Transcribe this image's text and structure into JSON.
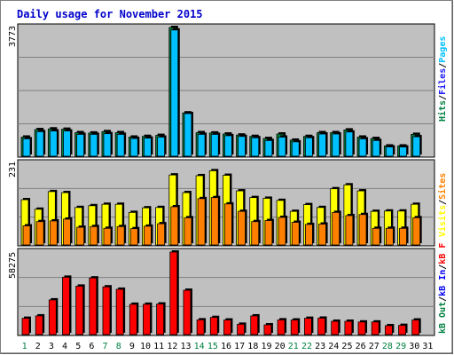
{
  "title": "Daily usage for November 2015",
  "colors": {
    "background": "#c0c0c0",
    "grid": "#808080",
    "pages": "#00c0ff",
    "files": "#1a1aff",
    "hits": "#008040",
    "sites": "#ff8000",
    "visits": "#ffff00",
    "kbytes": "#ff0000",
    "kb_in": "#0000ff",
    "kb_out": "#008040",
    "weekday": "#000000",
    "weekend": "#008040",
    "title": "#0000cc"
  },
  "chart_data": [
    {
      "type": "bar",
      "panel": "hits",
      "ymax_label": "3773",
      "ylim": [
        0,
        3773
      ],
      "categories": [
        "1",
        "2",
        "3",
        "4",
        "5",
        "6",
        "7",
        "8",
        "9",
        "10",
        "11",
        "12",
        "13",
        "14",
        "15",
        "16",
        "17",
        "18",
        "19",
        "20",
        "21",
        "22",
        "23",
        "24",
        "25",
        "26",
        "27",
        "28",
        "29",
        "30",
        "31"
      ],
      "series": [
        {
          "name": "Hits",
          "values": [
            560,
            780,
            800,
            790,
            690,
            680,
            720,
            690,
            560,
            580,
            610,
            3773,
            1270,
            690,
            680,
            650,
            620,
            580,
            520,
            650,
            470,
            580,
            690,
            690,
            770,
            560,
            520,
            300,
            300,
            640,
            0
          ]
        },
        {
          "name": "Files",
          "values": [
            510,
            720,
            740,
            740,
            640,
            640,
            660,
            640,
            520,
            530,
            560,
            3700,
            1250,
            640,
            640,
            600,
            580,
            540,
            460,
            560,
            420,
            540,
            650,
            650,
            710,
            510,
            460,
            270,
            270,
            570,
            0
          ]
        },
        {
          "name": "Pages",
          "values": [
            0,
            0,
            0,
            0,
            0,
            0,
            0,
            0,
            0,
            0,
            0,
            0,
            0,
            0,
            0,
            0,
            0,
            0,
            0,
            0,
            0,
            0,
            0,
            0,
            0,
            0,
            0,
            0,
            0,
            0,
            0
          ]
        }
      ]
    },
    {
      "type": "bar",
      "panel": "visits",
      "ymax_label": "231",
      "ylim": [
        0,
        231
      ],
      "categories": [
        "1",
        "2",
        "3",
        "4",
        "5",
        "6",
        "7",
        "8",
        "9",
        "10",
        "11",
        "12",
        "13",
        "14",
        "15",
        "16",
        "17",
        "18",
        "19",
        "20",
        "21",
        "22",
        "23",
        "24",
        "25",
        "26",
        "27",
        "28",
        "29",
        "30",
        "31"
      ],
      "series": [
        {
          "name": "Visits",
          "values": [
            128,
            101,
            151,
            148,
            106,
            111,
            115,
            115,
            92,
            105,
            106,
            198,
            148,
            196,
            210,
            197,
            153,
            134,
            132,
            126,
            95,
            114,
            106,
            159,
            170,
            153,
            95,
            96,
            96,
            115,
            0
          ]
        },
        {
          "name": "Sites",
          "values": [
            54,
            66,
            68,
            73,
            50,
            52,
            47,
            52,
            46,
            53,
            60,
            108,
            77,
            131,
            134,
            116,
            95,
            66,
            69,
            78,
            64,
            58,
            59,
            92,
            83,
            86,
            47,
            47,
            47,
            77,
            0
          ]
        }
      ]
    },
    {
      "type": "bar",
      "panel": "kbytes",
      "ymax_label": "58275",
      "ylim": [
        0,
        58275
      ],
      "categories": [
        "1",
        "2",
        "3",
        "4",
        "5",
        "6",
        "7",
        "8",
        "9",
        "10",
        "11",
        "12",
        "13",
        "14",
        "15",
        "16",
        "17",
        "18",
        "19",
        "20",
        "21",
        "22",
        "23",
        "24",
        "25",
        "26",
        "27",
        "28",
        "29",
        "30",
        "31"
      ],
      "series": [
        {
          "name": "KB F",
          "values": [
            11500,
            13200,
            24500,
            40500,
            34200,
            40000,
            33700,
            32000,
            21400,
            21400,
            21600,
            58275,
            31300,
            10400,
            12100,
            10300,
            7300,
            13200,
            6900,
            10400,
            10300,
            11500,
            11600,
            9400,
            9400,
            8900,
            8900,
            6300,
            6500,
            10300,
            0
          ]
        }
      ]
    }
  ],
  "right_labels": {
    "hits": [
      {
        "text": "Hits",
        "color": "#008040"
      },
      {
        "text": "/",
        "color": "#000000"
      },
      {
        "text": "Files",
        "color": "#1a1aff"
      },
      {
        "text": "/",
        "color": "#000000"
      },
      {
        "text": "Pages",
        "color": "#00c0ff"
      }
    ],
    "visits": [
      {
        "text": "Visits",
        "color": "#ffff00"
      },
      {
        "text": "/",
        "color": "#000000"
      },
      {
        "text": "Sites",
        "color": "#ff8000"
      }
    ],
    "kbytes": [
      {
        "text": "kB Out",
        "color": "#008040"
      },
      {
        "text": "/",
        "color": "#000000"
      },
      {
        "text": "kB In",
        "color": "#0000ff"
      },
      {
        "text": "/",
        "color": "#000000"
      },
      {
        "text": "kB F",
        "color": "#ff0000"
      }
    ]
  },
  "x_labels": [
    "1",
    "2",
    "3",
    "4",
    "5",
    "6",
    "7",
    "8",
    "9",
    "10",
    "11",
    "12",
    "13",
    "14",
    "15",
    "16",
    "17",
    "18",
    "19",
    "20",
    "21",
    "22",
    "23",
    "24",
    "25",
    "26",
    "27",
    "28",
    "29",
    "30",
    "31"
  ],
  "weekend_days": [
    "1",
    "7",
    "8",
    "14",
    "15",
    "21",
    "22",
    "28",
    "29"
  ]
}
